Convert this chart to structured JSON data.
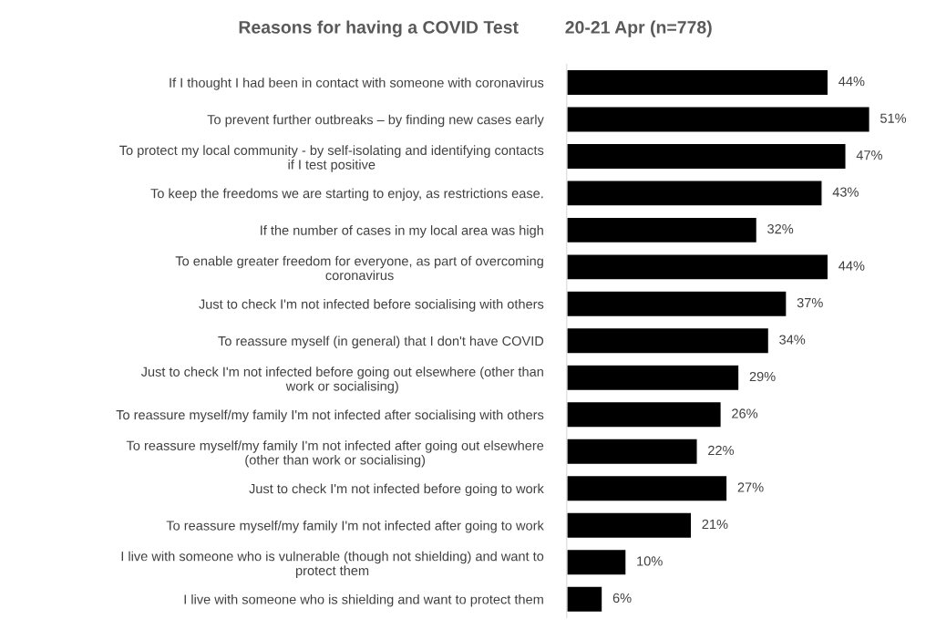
{
  "chart_data": {
    "type": "bar",
    "orientation": "horizontal",
    "title": "Reasons for having a COVID Test",
    "subtitle": "20-21 Apr (n=778)",
    "categories": [
      "If I thought I had been in contact with someone with coronavirus",
      "To prevent further outbreaks – by finding new cases early",
      "To protect my local community - by self-isolating and identifying contacts\nif I test positive",
      "To keep the freedoms we are starting to enjoy, as restrictions ease.",
      "If the number of cases in my local area was high",
      "To enable greater freedom for everyone, as part of overcoming\ncoronavirus",
      "Just to check I'm not infected before socialising with others",
      "To reassure myself (in general) that I don't have COVID",
      "Just to check I'm not infected before going out elsewhere (other than\nwork or socialising)",
      "To reassure myself/my family I'm not infected after socialising with others",
      "To reassure myself/my family I'm not infected after going out elsewhere\n(other than work or socialising)",
      "Just to check I'm not infected before going to work",
      "To reassure myself/my family I'm not infected after going to work",
      "I live with someone who is vulnerable (though not shielding) and want to\nprotect them",
      "I live with someone who is shielding and want to protect them"
    ],
    "values": [
      44,
      51,
      47,
      43,
      32,
      44,
      37,
      34,
      29,
      26,
      22,
      27,
      21,
      10,
      6
    ],
    "value_labels": [
      "44%",
      "51%",
      "47%",
      "43%",
      "32%",
      "44%",
      "37%",
      "34%",
      "29%",
      "26%",
      "22%",
      "27%",
      "21%",
      "10%",
      "6%"
    ],
    "color": "#000000",
    "grid": false,
    "legend": false
  }
}
